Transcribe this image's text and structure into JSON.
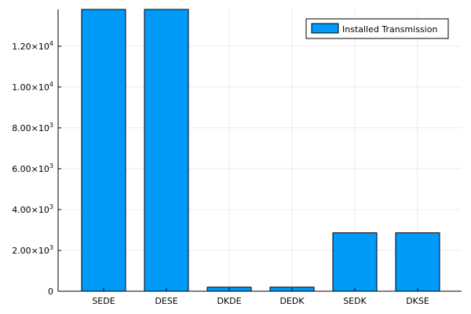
{
  "chart_data": {
    "type": "bar",
    "categories": [
      "SEDE",
      "DESE",
      "DKDE",
      "DEDK",
      "SEDK",
      "DKSE"
    ],
    "series": [
      {
        "name": "Installed Transmission",
        "values": [
          13800,
          13800,
          200,
          200,
          2860,
          2860
        ],
        "color": "#009AF9"
      }
    ],
    "ylim": [
      0,
      13800
    ],
    "yticks": [
      {
        "value": 2000,
        "mantissa": "2.00",
        "exponent": "3"
      },
      {
        "value": 4000,
        "mantissa": "4.00",
        "exponent": "3"
      },
      {
        "value": 6000,
        "mantissa": "6.00",
        "exponent": "3"
      },
      {
        "value": 8000,
        "mantissa": "8.00",
        "exponent": "3"
      },
      {
        "value": 10000,
        "mantissa": "1.00",
        "exponent": "4"
      },
      {
        "value": 12000,
        "mantissa": "1.20",
        "exponent": "4"
      }
    ],
    "zero_label": "0",
    "grid": true,
    "legend_position": "top-right"
  }
}
